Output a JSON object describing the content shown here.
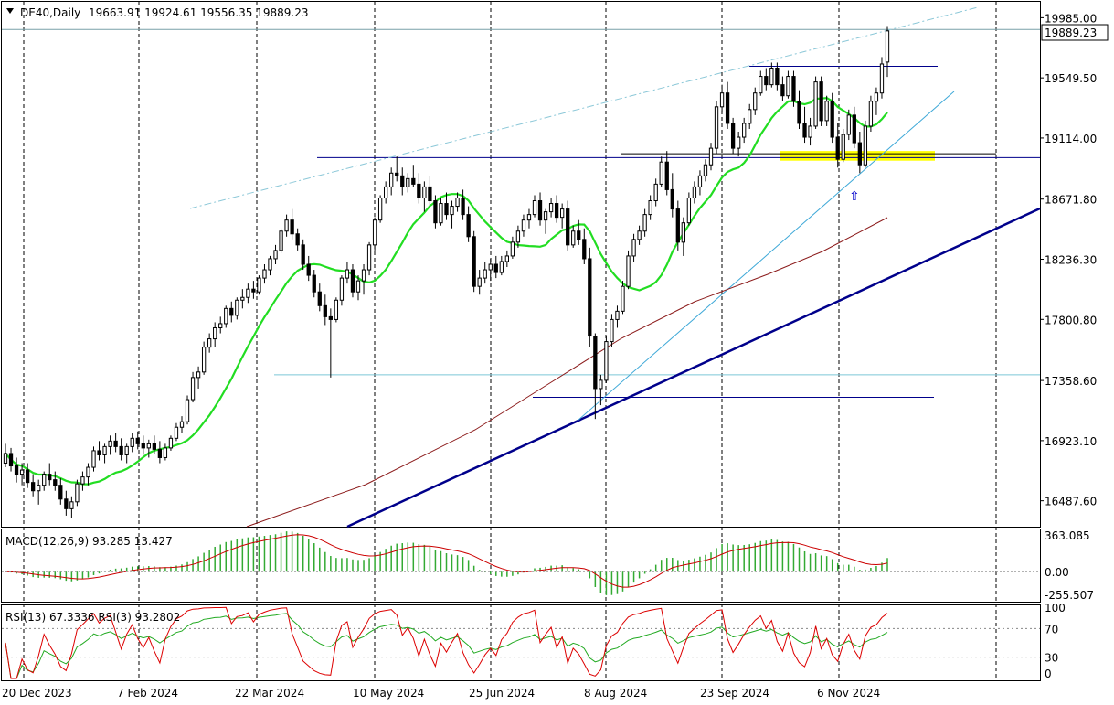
{
  "header": {
    "symbol": "DE40,Daily",
    "ohlc": "19663.91 19924.61 19556.35 19889.23",
    "last_price_tag": "19889.23"
  },
  "panels": {
    "macd": {
      "label": "MACD(12,26,9) 93.285 13.427",
      "ticks": [
        "363.085",
        "0.00",
        "-255.507"
      ]
    },
    "rsi": {
      "label": "RSI(13) 67.3336  RSI(3) 93.2802",
      "ticks": [
        "100",
        "70",
        "30",
        "0"
      ]
    }
  },
  "arrow_marker": "⇧",
  "colors": {
    "background": "#ffffff",
    "candle": "#000000",
    "ma_fast": "#22dd22",
    "ma_slow": "#8b1a1a",
    "trendline_main": "#00008b",
    "trendline_light": "#3fa9d8",
    "horizontal_levels": "#00008b",
    "support_zone": "#ffff00",
    "macd_hist": "#33aa33",
    "macd_signal": "#cc0000",
    "rsi13": "#22aa22",
    "rsi3": "#dd0000"
  },
  "chart_data": {
    "type": "candlestick",
    "title": "DE40,Daily",
    "price_ticks": [
      "19985.00",
      "19549.50",
      "19114.00",
      "18671.80",
      "18236.30",
      "17800.80",
      "17358.60",
      "16923.10",
      "16487.60"
    ],
    "x_labels": [
      "20 Dec 2023",
      "7 Feb 2024",
      "22 Mar 2024",
      "10 May 2024",
      "25 Jun 2024",
      "8 Aug 2024",
      "23 Sep 2024",
      "6 Nov 2024"
    ],
    "ylim": [
      16300,
      20100
    ],
    "last": {
      "open": 19663.91,
      "high": 19924.61,
      "low": 19556.35,
      "close": 19889.23
    },
    "horizontal_levels": [
      19633,
      19000,
      18972,
      17400,
      17237
    ],
    "support_zone": [
      18950,
      19020
    ],
    "price_path": [
      [
        16760,
        16900,
        16730,
        16830
      ],
      [
        16830,
        16870,
        16700,
        16740
      ],
      [
        16740,
        16800,
        16620,
        16680
      ],
      [
        16680,
        16760,
        16600,
        16710
      ],
      [
        16710,
        16760,
        16580,
        16620
      ],
      [
        16620,
        16680,
        16520,
        16560
      ],
      [
        16560,
        16640,
        16460,
        16600
      ],
      [
        16600,
        16700,
        16560,
        16680
      ],
      [
        16680,
        16760,
        16600,
        16640
      ],
      [
        16640,
        16700,
        16560,
        16600
      ],
      [
        16600,
        16650,
        16460,
        16500
      ],
      [
        16500,
        16560,
        16380,
        16430
      ],
      [
        16430,
        16520,
        16360,
        16480
      ],
      [
        16480,
        16640,
        16450,
        16610
      ],
      [
        16610,
        16700,
        16560,
        16660
      ],
      [
        16660,
        16760,
        16600,
        16730
      ],
      [
        16730,
        16880,
        16700,
        16850
      ],
      [
        16850,
        16920,
        16780,
        16820
      ],
      [
        16820,
        16900,
        16760,
        16880
      ],
      [
        16880,
        16960,
        16820,
        16920
      ],
      [
        16920,
        16980,
        16840,
        16880
      ],
      [
        16880,
        16940,
        16780,
        16820
      ],
      [
        16820,
        16900,
        16760,
        16880
      ],
      [
        16880,
        16980,
        16840,
        16940
      ],
      [
        16940,
        16990,
        16860,
        16900
      ],
      [
        16900,
        16960,
        16820,
        16870
      ],
      [
        16870,
        16930,
        16800,
        16900
      ],
      [
        16900,
        16960,
        16830,
        16860
      ],
      [
        16860,
        16920,
        16760,
        16800
      ],
      [
        16800,
        16900,
        16780,
        16870
      ],
      [
        16870,
        16960,
        16850,
        16940
      ],
      [
        16940,
        17050,
        16920,
        17020
      ],
      [
        17020,
        17100,
        16980,
        17060
      ],
      [
        17060,
        17250,
        17040,
        17220
      ],
      [
        17220,
        17420,
        17200,
        17380
      ],
      [
        17380,
        17460,
        17300,
        17420
      ],
      [
        17420,
        17640,
        17400,
        17600
      ],
      [
        17600,
        17700,
        17560,
        17660
      ],
      [
        17660,
        17780,
        17600,
        17740
      ],
      [
        17740,
        17820,
        17700,
        17770
      ],
      [
        17770,
        17900,
        17740,
        17880
      ],
      [
        17880,
        17930,
        17780,
        17830
      ],
      [
        17830,
        17960,
        17800,
        17940
      ],
      [
        17940,
        18020,
        17880,
        17960
      ],
      [
        17960,
        18060,
        17920,
        18020
      ],
      [
        18020,
        18080,
        17950,
        18000
      ],
      [
        18000,
        18120,
        17980,
        18100
      ],
      [
        18100,
        18200,
        18060,
        18160
      ],
      [
        18160,
        18260,
        18120,
        18240
      ],
      [
        18240,
        18340,
        18200,
        18300
      ],
      [
        18300,
        18460,
        18280,
        18440
      ],
      [
        18440,
        18560,
        18400,
        18520
      ],
      [
        18520,
        18600,
        18380,
        18420
      ],
      [
        18420,
        18460,
        18300,
        18340
      ],
      [
        18340,
        18380,
        18160,
        18200
      ],
      [
        18200,
        18260,
        18080,
        18120
      ],
      [
        18120,
        18160,
        17960,
        18000
      ],
      [
        18000,
        18060,
        17860,
        17900
      ],
      [
        17900,
        17980,
        17760,
        17820
      ],
      [
        17820,
        17880,
        17380,
        17800
      ],
      [
        17800,
        17960,
        17780,
        17940
      ],
      [
        17940,
        18120,
        17900,
        18100
      ],
      [
        18100,
        18220,
        18060,
        18160
      ],
      [
        18160,
        18200,
        17960,
        18000
      ],
      [
        18000,
        18120,
        17940,
        18080
      ],
      [
        18080,
        18200,
        17980,
        18160
      ],
      [
        18160,
        18360,
        18120,
        18340
      ],
      [
        18340,
        18540,
        18300,
        18520
      ],
      [
        18520,
        18700,
        18500,
        18680
      ],
      [
        18680,
        18800,
        18640,
        18760
      ],
      [
        18760,
        18900,
        18700,
        18860
      ],
      [
        18860,
        18980,
        18800,
        18840
      ],
      [
        18840,
        18900,
        18700,
        18760
      ],
      [
        18760,
        18860,
        18720,
        18820
      ],
      [
        18820,
        18920,
        18760,
        18780
      ],
      [
        18780,
        18860,
        18640,
        18680
      ],
      [
        18680,
        18800,
        18580,
        18760
      ],
      [
        18760,
        18840,
        18620,
        18660
      ],
      [
        18660,
        18700,
        18460,
        18500
      ],
      [
        18500,
        18680,
        18480,
        18640
      ],
      [
        18640,
        18720,
        18520,
        18560
      ],
      [
        18560,
        18660,
        18460,
        18620
      ],
      [
        18620,
        18720,
        18580,
        18680
      ],
      [
        18680,
        18740,
        18520,
        18560
      ],
      [
        18560,
        18620,
        18360,
        18400
      ],
      [
        18400,
        18440,
        18000,
        18040
      ],
      [
        18040,
        18160,
        17980,
        18100
      ],
      [
        18100,
        18220,
        18060,
        18160
      ],
      [
        18160,
        18240,
        18080,
        18200
      ],
      [
        18200,
        18260,
        18100,
        18140
      ],
      [
        18140,
        18260,
        18120,
        18220
      ],
      [
        18220,
        18300,
        18180,
        18260
      ],
      [
        18260,
        18400,
        18240,
        18360
      ],
      [
        18360,
        18480,
        18320,
        18440
      ],
      [
        18440,
        18560,
        18400,
        18520
      ],
      [
        18520,
        18600,
        18460,
        18560
      ],
      [
        18560,
        18700,
        18540,
        18660
      ],
      [
        18660,
        18720,
        18480,
        18520
      ],
      [
        18520,
        18600,
        18420,
        18580
      ],
      [
        18580,
        18680,
        18540,
        18640
      ],
      [
        18640,
        18700,
        18500,
        18540
      ],
      [
        18540,
        18640,
        18460,
        18600
      ],
      [
        18600,
        18660,
        18300,
        18340
      ],
      [
        18340,
        18480,
        18320,
        18440
      ],
      [
        18440,
        18520,
        18340,
        18380
      ],
      [
        18380,
        18460,
        18200,
        18240
      ],
      [
        18240,
        18320,
        17600,
        17680
      ],
      [
        17680,
        17700,
        17080,
        17300
      ],
      [
        17300,
        17400,
        17180,
        17360
      ],
      [
        17360,
        17680,
        17340,
        17640
      ],
      [
        17640,
        17840,
        17600,
        17800
      ],
      [
        17800,
        17900,
        17740,
        17860
      ],
      [
        17860,
        18080,
        17840,
        18040
      ],
      [
        18040,
        18300,
        18020,
        18260
      ],
      [
        18260,
        18420,
        18220,
        18380
      ],
      [
        18380,
        18480,
        18340,
        18440
      ],
      [
        18440,
        18600,
        18400,
        18560
      ],
      [
        18560,
        18700,
        18520,
        18660
      ],
      [
        18660,
        18820,
        18620,
        18780
      ],
      [
        18780,
        18980,
        18760,
        18940
      ],
      [
        18940,
        19020,
        18700,
        18740
      ],
      [
        18740,
        18860,
        18540,
        18600
      ],
      [
        18600,
        18660,
        18300,
        18360
      ],
      [
        18360,
        18540,
        18260,
        18500
      ],
      [
        18500,
        18720,
        18480,
        18680
      ],
      [
        18680,
        18800,
        18640,
        18760
      ],
      [
        18760,
        18880,
        18700,
        18840
      ],
      [
        18840,
        18960,
        18800,
        18920
      ],
      [
        18920,
        19080,
        18880,
        19040
      ],
      [
        19040,
        19380,
        19000,
        19340
      ],
      [
        19340,
        19500,
        19300,
        19440
      ],
      [
        19440,
        19520,
        19180,
        19220
      ],
      [
        19220,
        19260,
        19000,
        19040
      ],
      [
        19040,
        19160,
        18980,
        19120
      ],
      [
        19120,
        19260,
        19080,
        19220
      ],
      [
        19220,
        19360,
        19180,
        19320
      ],
      [
        19320,
        19480,
        19280,
        19440
      ],
      [
        19440,
        19600,
        19420,
        19560
      ],
      [
        19560,
        19620,
        19460,
        19500
      ],
      [
        19500,
        19660,
        19480,
        19620
      ],
      [
        19620,
        19660,
        19460,
        19500
      ],
      [
        19500,
        19560,
        19380,
        19420
      ],
      [
        19420,
        19600,
        19400,
        19560
      ],
      [
        19560,
        19600,
        19340,
        19380
      ],
      [
        19380,
        19460,
        19180,
        19220
      ],
      [
        19220,
        19340,
        19080,
        19120
      ],
      [
        19120,
        19260,
        19060,
        19200
      ],
      [
        19200,
        19560,
        19180,
        19520
      ],
      [
        19520,
        19560,
        19200,
        19240
      ],
      [
        19240,
        19420,
        19200,
        19380
      ],
      [
        19380,
        19440,
        19080,
        19120
      ],
      [
        19120,
        19220,
        18900,
        18960
      ],
      [
        18960,
        19180,
        18940,
        19140
      ],
      [
        19140,
        19320,
        19100,
        19280
      ],
      [
        19280,
        19340,
        19040,
        19080
      ],
      [
        19080,
        19160,
        18860,
        18920
      ],
      [
        18920,
        19240,
        18900,
        19200
      ],
      [
        19200,
        19420,
        19160,
        19380
      ],
      [
        19380,
        19480,
        19280,
        19440
      ],
      [
        19440,
        19700,
        19400,
        19650
      ],
      [
        19663.91,
        19924.61,
        19556.35,
        19889.23
      ]
    ],
    "ma_fast": {
      "name": "",
      "type": "line"
    },
    "ma_slow": {
      "name": "",
      "type": "line"
    },
    "macd": {
      "label": "MACD(12,26,9) 93.285 13.427",
      "macd": 93.285,
      "signal": 13.427,
      "ylim": [
        -255.507,
        363.085
      ]
    },
    "rsi": {
      "label": "RSI(13) 67.3336  RSI(3) 93.2802",
      "rsi13": 67.3336,
      "rsi3": 93.2802,
      "levels": [
        70,
        30
      ],
      "ylim": [
        0,
        100
      ]
    }
  }
}
